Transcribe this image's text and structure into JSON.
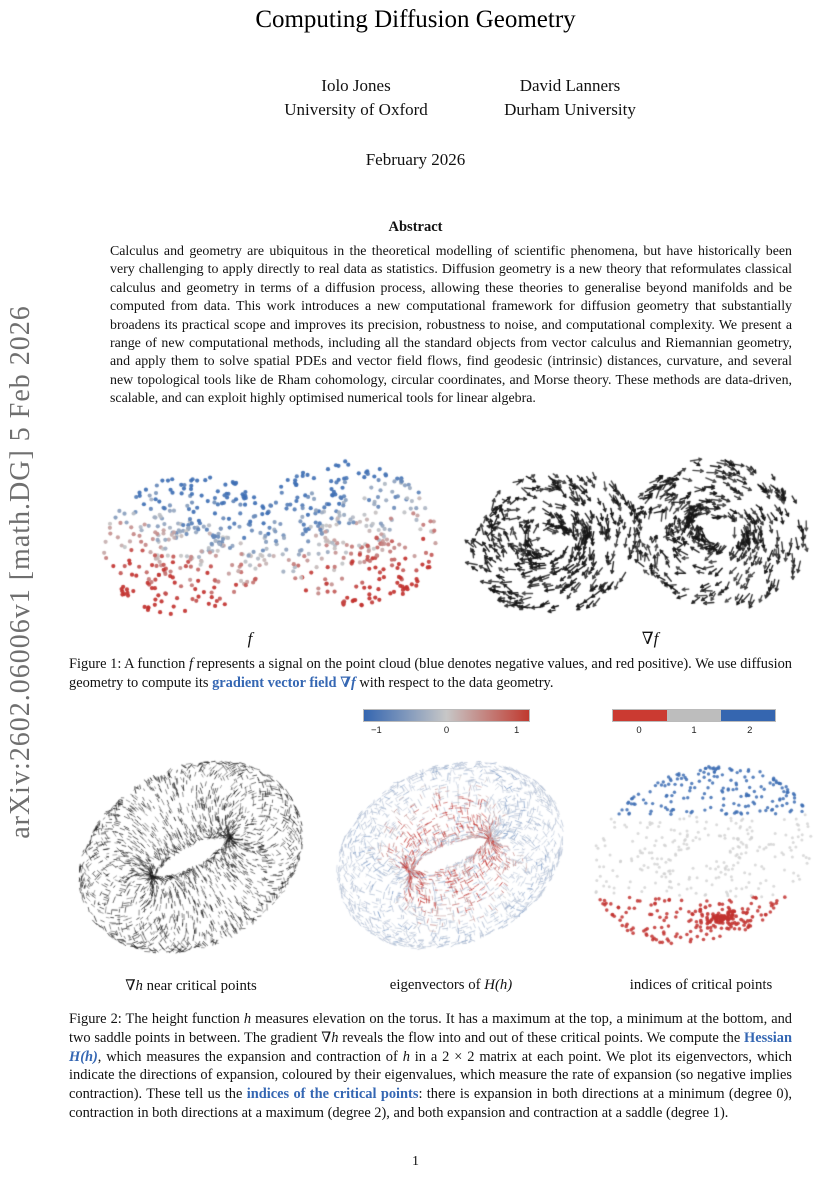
{
  "stamp": {
    "text": "arXiv:2602.06006v1  [math.DG]  5 Feb 2026"
  },
  "header": {
    "title": "Computing Diffusion Geometry",
    "authors": [
      {
        "name": "Iolo Jones",
        "affiliation": "University of Oxford"
      },
      {
        "name": "David Lanners",
        "affiliation": "Durham University"
      }
    ],
    "date": "February 2026"
  },
  "abstract": {
    "heading": "Abstract",
    "text": "Calculus and geometry are ubiquitous in the theoretical modelling of scientific phenomena, but have historically been very challenging to apply directly to real data as statistics. Diffusion geometry is a new theory that reformulates classical calculus and geometry in terms of a diffusion process, allowing these theories to generalise beyond manifolds and be computed from data. This work introduces a new computational framework for diffusion geometry that substantially broadens its practical scope and improves its precision, robustness to noise, and computational complexity. We present a range of new computational methods, including all the standard objects from vector calculus and Riemannian geometry, and apply them to solve spatial PDEs and vector field flows, find geodesic (intrinsic) distances, curvature, and several new topological tools like de Rham cohomology, circular coordinates, and Morse theory. These methods are data-driven, scalable, and can exploit highly optimised numerical tools for linear algebra."
  },
  "figure1": {
    "label_f": "f",
    "label_gradf": "∇f",
    "caption": {
      "s1": "Figure 1: A function ",
      "s2": "f",
      "s3": " represents a signal on the point cloud (blue denotes negative values, and red positive). We use diffusion geometry to compute its ",
      "s4": "gradient vector field ",
      "s5": "∇f",
      "s6": " with respect to the data geometry."
    }
  },
  "figure2": {
    "colorbar_eigen": {
      "ticks": [
        "−1",
        "0",
        "1"
      ],
      "colors": [
        "#3566b0",
        "#c7c7c7",
        "#c0392f"
      ]
    },
    "colorbar_index": {
      "ticks": [
        "0",
        "1",
        "2"
      ],
      "colors": [
        "#cb3a31",
        "#bdbdbd",
        "#3566b0"
      ]
    },
    "panel_labels": {
      "p1_math": "∇h",
      "p1_text": " near critical points",
      "p2_text": "eigenvectors of ",
      "p2_math": "H(h)",
      "p3_text": "indices of critical points"
    },
    "caption": {
      "s1": "Figure 2: The height function ",
      "s2": "h",
      "s3": " measures elevation on the torus. It has a maximum at the top, a minimum at the bottom, and two saddle points in between. The gradient ",
      "s4": "∇h",
      "s5": " reveals the flow into and out of these critical points. We compute the ",
      "s6": "Hessian ",
      "s7": "H(h)",
      "s8": ", which measures the expansion and contraction of ",
      "s9": "h",
      "s10": " in a 2 × 2 matrix at each point. We plot its eigenvectors, which indicate the directions of expansion, coloured by their eigenvalues, which measure the rate of expansion (so negative implies contraction). These tell us the ",
      "s11": "indices of the critical points",
      "s12": ": there is expansion in both directions at a minimum (degree 0), contraction in both directions at a maximum (degree 2), and both expansion and contraction at a saddle (degree 1)."
    }
  },
  "page": {
    "number": "1"
  },
  "palette": {
    "link_blue": "#3567b3",
    "stamp_gray": "#6f6f6f",
    "point_blue": "#3e6fb4",
    "point_red": "#c23330",
    "point_gray": "#c6c6c6",
    "stroke_black": "#161616",
    "eigen_pale": "#b7c3d6",
    "index_gray": "#cfcfcf"
  }
}
